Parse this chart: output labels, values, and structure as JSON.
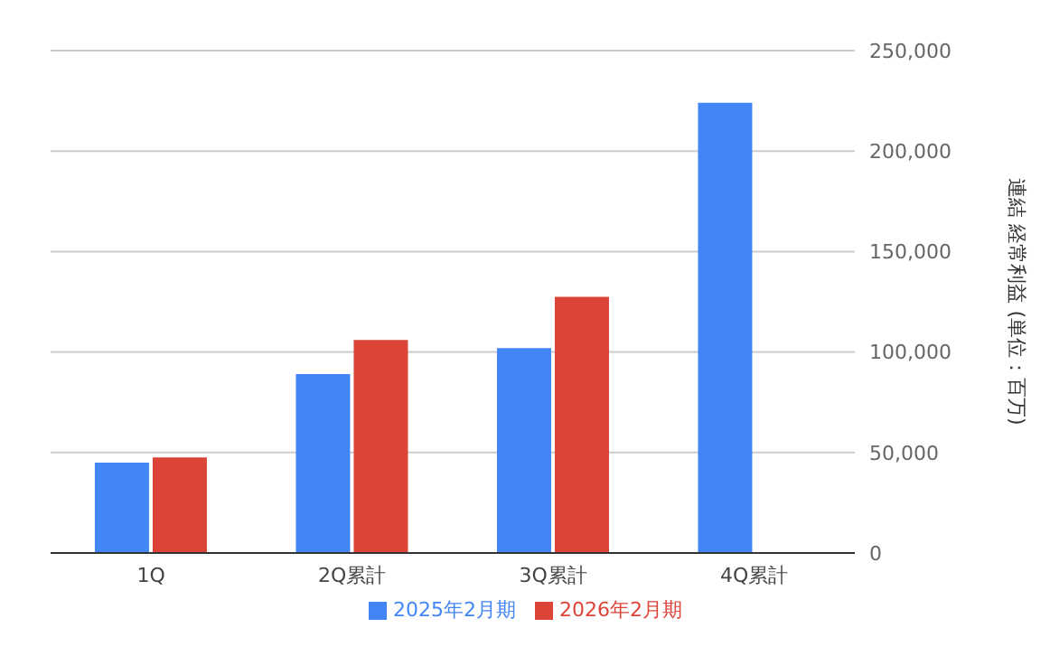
{
  "chart_data": {
    "type": "bar",
    "categories": [
      "1Q",
      "2Q累計",
      "3Q累計",
      "4Q累計"
    ],
    "series": [
      {
        "name": "2025年2月期",
        "color": "#4285f4",
        "values": [
          45000,
          89000,
          102000,
          224000
        ]
      },
      {
        "name": "2026年2月期",
        "color": "#db4437",
        "values": [
          47500,
          106000,
          127500,
          null
        ]
      }
    ],
    "ylabel": "連結 経常利益 (単位：百万)",
    "ylim": [
      0,
      250000
    ],
    "yticks": [
      {
        "value": 0,
        "label": "0"
      },
      {
        "value": 50000,
        "label": "50,000"
      },
      {
        "value": 100000,
        "label": "100,000"
      },
      {
        "value": 150000,
        "label": "150,000"
      },
      {
        "value": 200000,
        "label": "200,000"
      },
      {
        "value": 250000,
        "label": "250,000"
      }
    ],
    "grid": "y",
    "legend": "bottom"
  }
}
